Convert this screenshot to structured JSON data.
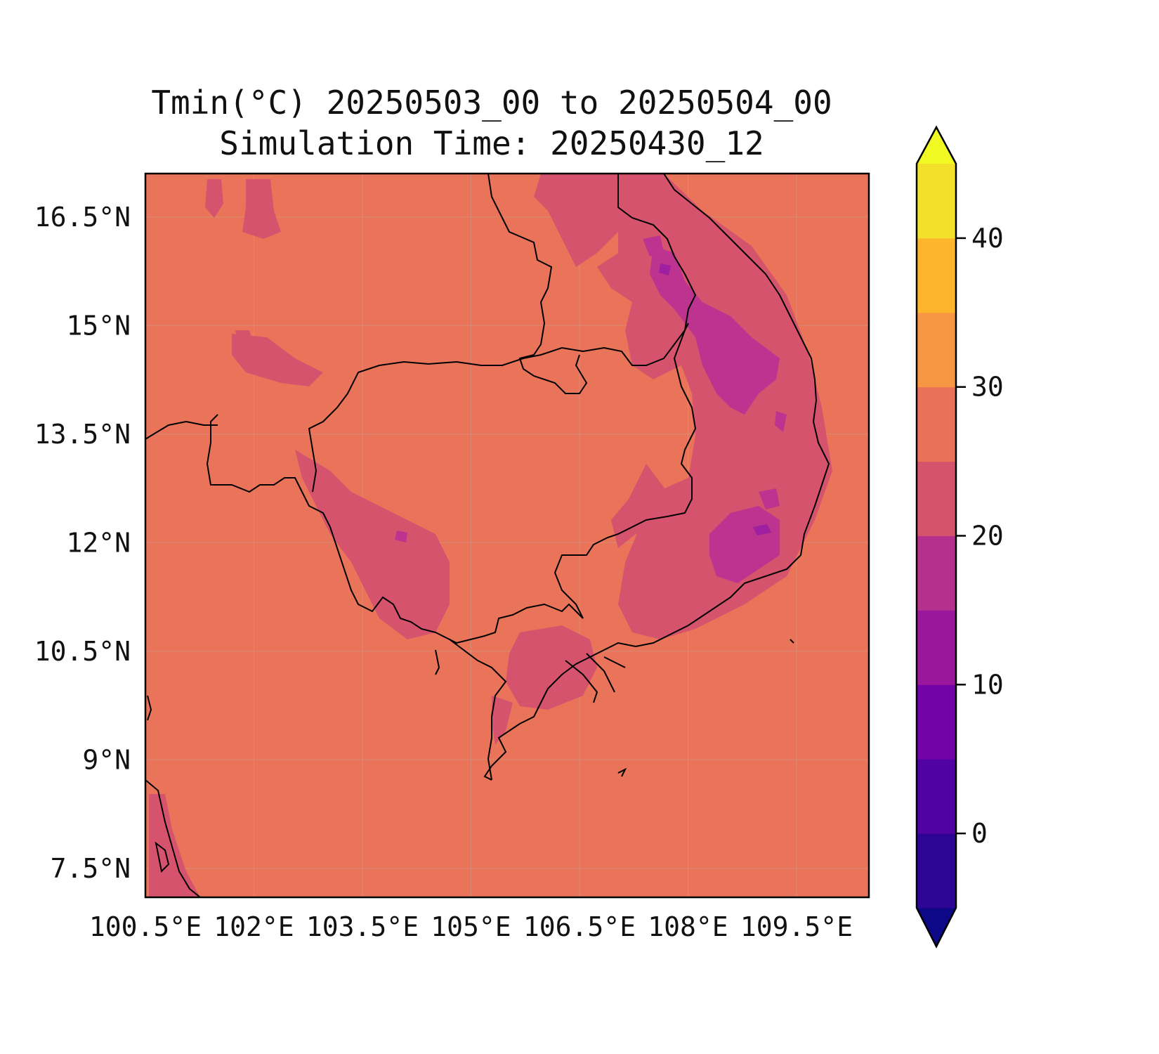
{
  "title": {
    "line1": "Tmin(°C) 20250503_00 to 20250504_00",
    "line2": "Simulation Time: 20250430_12"
  },
  "map": {
    "x_ticks": [
      "100.5°E",
      "102°E",
      "103.5°E",
      "105°E",
      "106.5°E",
      "108°E",
      "109.5°E"
    ],
    "y_ticks": [
      "16.5°N",
      "15°N",
      "13.5°N",
      "12°N",
      "10.5°N",
      "9°N",
      "7.5°N"
    ],
    "lon_range": [
      100.5,
      110.5
    ],
    "lat_range": [
      7.1,
      17.1
    ],
    "grid": true
  },
  "colorbar": {
    "ticks": [
      "0",
      "10",
      "20",
      "30",
      "40"
    ],
    "levels": [
      -5,
      0,
      5,
      10,
      15,
      20,
      25,
      30,
      35,
      40,
      45
    ],
    "extend": "both",
    "colors": [
      "#0d0887",
      "#2c0594",
      "#5002a2",
      "#7301a8",
      "#9a179b",
      "#b52f8c",
      "#d6536d",
      "#e97158",
      "#f79643",
      "#fdb52e",
      "#f3e02b",
      "#f0f921"
    ]
  },
  "fill_colors": {
    "background": "#ea7459",
    "band_20_25": "#d6536d",
    "band_15_20": "#bc3490",
    "band_10_15": "#9e1f9f"
  }
}
